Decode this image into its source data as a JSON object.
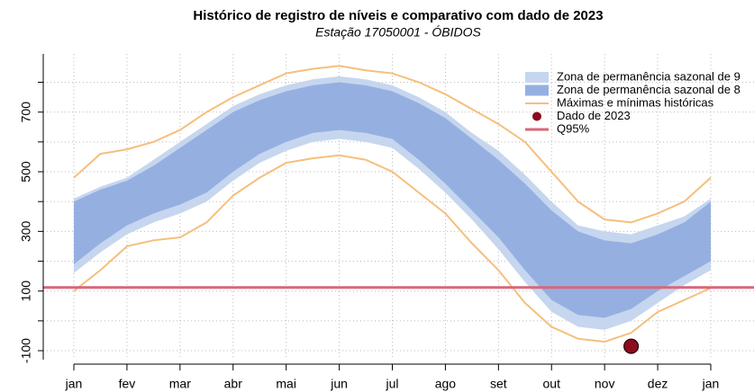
{
  "chart_data": {
    "type": "band",
    "title": "Histórico de registro de níveis e comparativo com dado de 2023",
    "subtitle": "Estação 17050001 - ÓBIDOS",
    "categories": [
      "jan",
      "fev",
      "mar",
      "abr",
      "mai",
      "jun",
      "jul",
      "ago",
      "set",
      "out",
      "nov",
      "dez",
      "jan"
    ],
    "ylim": [
      -130,
      895
    ],
    "yticks": [
      -100,
      100,
      300,
      500,
      700
    ],
    "ygrid": [
      -100,
      0,
      100,
      200,
      300,
      400,
      500,
      600,
      700,
      800
    ],
    "grid": true,
    "bands": [
      {
        "name": "Zona de permanência sazonal de 9",
        "color": "#c6d6ef",
        "upper": [
          410,
          450,
          480,
          540,
          600,
          660,
          720,
          760,
          790,
          810,
          820,
          810,
          790,
          750,
          700,
          630,
          570,
          490,
          400,
          320,
          300,
          290,
          320,
          350,
          410
        ],
        "lower": [
          160,
          230,
          290,
          330,
          360,
          400,
          470,
          530,
          570,
          600,
          610,
          600,
          580,
          510,
          430,
          340,
          240,
          130,
          30,
          -20,
          -30,
          0,
          60,
          120,
          170
        ]
      },
      {
        "name": "Zona de permanência sazonal de 8",
        "color": "#95b0e0",
        "upper": [
          400,
          440,
          470,
          520,
          580,
          640,
          700,
          740,
          770,
          790,
          800,
          790,
          770,
          730,
          680,
          610,
          540,
          460,
          370,
          300,
          270,
          260,
          290,
          330,
          400
        ],
        "lower": [
          190,
          260,
          320,
          360,
          390,
          430,
          500,
          560,
          600,
          630,
          640,
          630,
          610,
          540,
          460,
          370,
          280,
          170,
          70,
          20,
          10,
          40,
          100,
          150,
          200
        ]
      }
    ],
    "extremes": {
      "name": "Máximas e mínimas históricas",
      "color": "#f5bf7c",
      "max": [
        480,
        560,
        575,
        600,
        640,
        700,
        750,
        790,
        830,
        845,
        855,
        840,
        830,
        800,
        760,
        710,
        660,
        600,
        500,
        400,
        340,
        330,
        360,
        400,
        480
      ],
      "min": [
        100,
        170,
        250,
        270,
        280,
        330,
        420,
        480,
        530,
        545,
        555,
        540,
        500,
        430,
        360,
        260,
        170,
        60,
        -20,
        -60,
        -70,
        -40,
        30,
        70,
        110
      ]
    },
    "point": {
      "name": "Dado de 2023",
      "color": "#8e0a1f",
      "x": 10.5,
      "value": -85
    },
    "reference": {
      "name": "Q95%",
      "color": "#d9667a",
      "value": 112
    }
  }
}
